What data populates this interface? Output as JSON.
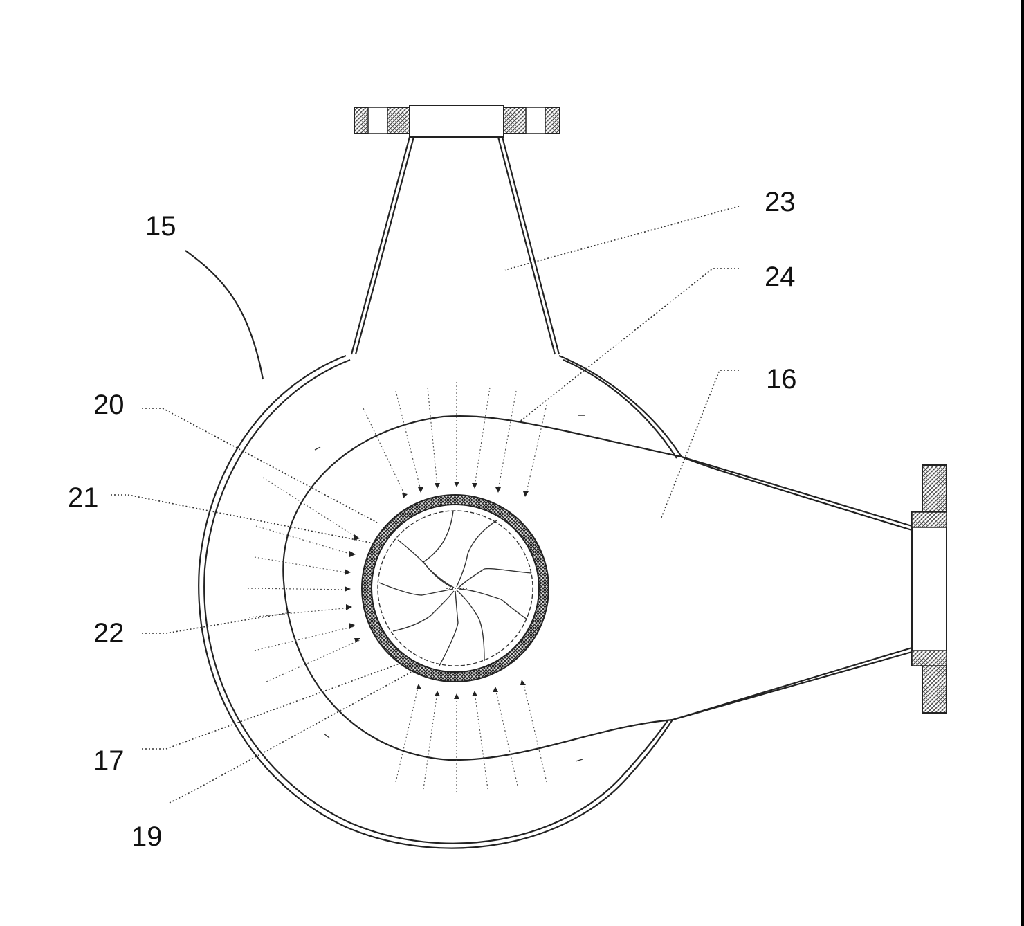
{
  "figure": {
    "reference_numerals": {
      "pump": "15",
      "volute_casing": "16",
      "impeller": "17",
      "screen": "19",
      "label_20": "20",
      "label_21": "21",
      "label_22": "22",
      "outlet_chamber": "23",
      "label_24": "24"
    }
  },
  "colors": {
    "line": "#222222",
    "hatch": "#444444",
    "background": "#ffffff"
  }
}
